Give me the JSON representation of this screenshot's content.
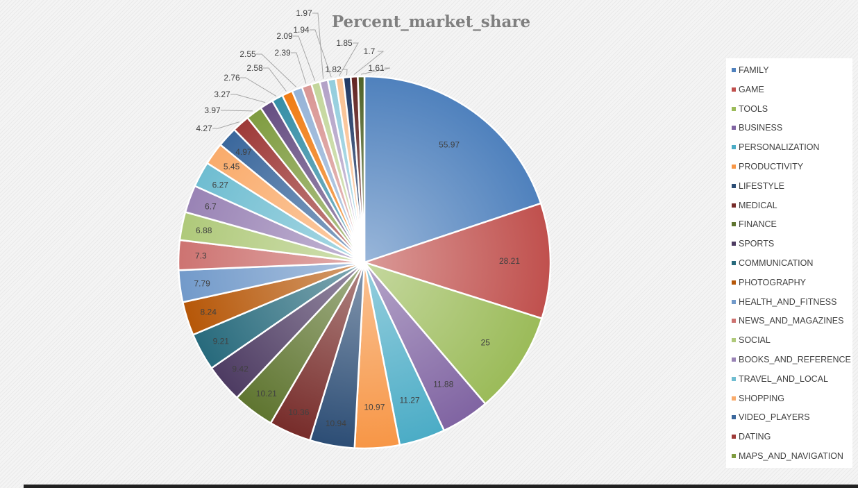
{
  "chart_data": {
    "type": "pie",
    "title": "Percent_market_share",
    "legend_position": "right",
    "slices": [
      {
        "label": "FAMILY",
        "value": 55.97,
        "color": "#4f81bd"
      },
      {
        "label": "GAME",
        "value": 28.21,
        "color": "#c0504d"
      },
      {
        "label": "TOOLS",
        "value": 25,
        "color": "#9bbb59"
      },
      {
        "label": "BUSINESS",
        "value": 11.88,
        "color": "#8064a2"
      },
      {
        "label": "PERSONALIZATION",
        "value": 11.27,
        "color": "#4bacc6"
      },
      {
        "label": "PRODUCTIVITY",
        "value": 10.97,
        "color": "#f79646"
      },
      {
        "label": "LIFESTYLE",
        "value": 10.94,
        "color": "#2c4d75"
      },
      {
        "label": "MEDICAL",
        "value": 10.36,
        "color": "#772c2a"
      },
      {
        "label": "FINANCE",
        "value": 10.21,
        "color": "#5f7530"
      },
      {
        "label": "SPORTS",
        "value": 9.42,
        "color": "#4d3b62"
      },
      {
        "label": "COMMUNICATION",
        "value": 9.21,
        "color": "#276a7c"
      },
      {
        "label": "PHOTOGRAPHY",
        "value": 8.24,
        "color": "#b65708"
      },
      {
        "label": "HEALTH_AND_FITNESS",
        "value": 7.79,
        "color": "#729aca"
      },
      {
        "label": "NEWS_AND_MAGAZINES",
        "value": 7.3,
        "color": "#cd7371"
      },
      {
        "label": "SOCIAL",
        "value": 6.88,
        "color": "#afc97a"
      },
      {
        "label": "BOOKS_AND_REFERENCE",
        "value": 6.7,
        "color": "#9983b5"
      },
      {
        "label": "TRAVEL_AND_LOCAL",
        "value": 6.27,
        "color": "#6fbdd1"
      },
      {
        "label": "SHOPPING",
        "value": 5.45,
        "color": "#f9ab6b"
      },
      {
        "label": "VIDEO_PLAYERS",
        "value": 4.97,
        "color": "#3a679c"
      },
      {
        "label": "DATING",
        "value": 4.27,
        "color": "#9e3a38"
      },
      {
        "label": "MAPS_AND_NAVIGATION",
        "value": 3.97,
        "color": "#7f9c40"
      },
      {
        "label": "",
        "value": 3.27,
        "color": "#664e82"
      },
      {
        "label": "",
        "value": 2.76,
        "color": "#358ea6"
      },
      {
        "label": "",
        "value": 2.58,
        "color": "#f07c14"
      },
      {
        "label": "",
        "value": 2.55,
        "color": "#95b3d7"
      },
      {
        "label": "",
        "value": 2.39,
        "color": "#d99694"
      },
      {
        "label": "",
        "value": 2.09,
        "color": "#c3d69b"
      },
      {
        "label": "",
        "value": 1.97,
        "color": "#b3a2c7"
      },
      {
        "label": "",
        "value": 1.94,
        "color": "#93cddd"
      },
      {
        "label": "",
        "value": 1.85,
        "color": "#fac090"
      },
      {
        "label": "",
        "value": 1.82,
        "color": "#1f3864"
      },
      {
        "label": "",
        "value": 1.7,
        "color": "#632523"
      },
      {
        "label": "",
        "value": 1.61,
        "color": "#4f6228"
      }
    ]
  }
}
